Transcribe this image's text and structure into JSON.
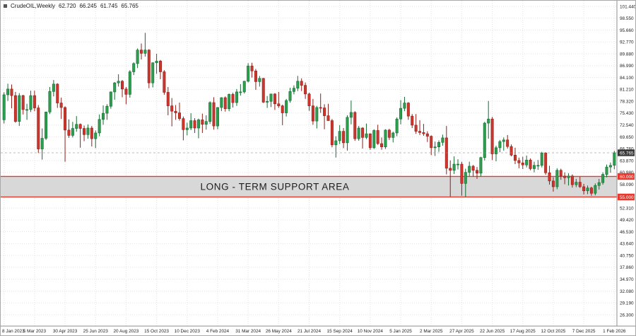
{
  "header": {
    "symbol_label": "CrudeOIL,Weekly",
    "open": "62.720",
    "high": "66.245",
    "low": "61.745",
    "close": "65.765"
  },
  "support_area": {
    "label": "LONG - TERM SUPPORT AREA",
    "top_tag": "60.000",
    "bottom_tag": "55.000"
  },
  "colors": {
    "bull": "#2e9e4f",
    "bull_edge": "#146b31",
    "bear": "#cf352c",
    "bear_edge": "#8e1f18",
    "grid": "#e3e3e3",
    "band_fill": "#d8d8d8",
    "band_edge": "#e8392e",
    "price_tag_current_bg": "#383838",
    "price_tag_zone_bg": "#e8392e",
    "axis_text": "#222222"
  },
  "chart_data": {
    "type": "candlestick",
    "title": "CrudeOIL Weekly",
    "current_price": 65.765,
    "support_zone": [
      55.0,
      60.0
    ],
    "ylim": [
      26.3,
      101.44
    ],
    "y_ticks": [
      101.44,
      98.55,
      95.66,
      92.77,
      89.88,
      86.99,
      84.1,
      81.21,
      78.32,
      75.43,
      72.54,
      69.65,
      66.76,
      63.87,
      60.98,
      58.09,
      55.2,
      52.31,
      49.42,
      46.53,
      43.64,
      40.75,
      37.86,
      34.97,
      32.08,
      29.19,
      26.3
    ],
    "x_tick_step_candles": 8,
    "x_tick_labels": [
      "8 Jan 2023",
      "5 Mar 2023",
      "30 Apr 2023",
      "25 Jun 2023",
      "20 Aug 2023",
      "15 Oct 2023",
      "10 Dec 2023",
      "4 Feb 2024",
      "31 Mar 2024",
      "26 May 2024",
      "21 Jul 2024",
      "15 Sep 2024",
      "10 Nov 2024",
      "5 Jan 2025",
      "2 Mar 2025",
      "27 Apr 2025",
      "22 Jun 2025",
      "17 Aug 2025",
      "12 Oct 2025",
      "7 Dec 2025",
      "1 Feb 2026"
    ],
    "candles": [
      [
        73.8,
        80.5,
        72.9,
        79.9
      ],
      [
        79.9,
        82.6,
        78.4,
        81.3
      ],
      [
        81.3,
        82.4,
        76.6,
        79.7
      ],
      [
        79.7,
        80.6,
        73.1,
        73.4
      ],
      [
        73.4,
        80.3,
        72.3,
        79.7
      ],
      [
        79.7,
        79.9,
        75.1,
        76.3
      ],
      [
        76.3,
        77.7,
        73.8,
        76.3
      ],
      [
        76.3,
        80.9,
        75.7,
        79.7
      ],
      [
        79.7,
        80.9,
        75.9,
        76.7
      ],
      [
        76.7,
        77.4,
        65.7,
        66.7
      ],
      [
        66.7,
        71.7,
        64.1,
        69.3
      ],
      [
        69.3,
        75.8,
        68.9,
        75.7
      ],
      [
        75.7,
        81.8,
        75.2,
        80.7
      ],
      [
        80.7,
        83.5,
        79.5,
        82.5
      ],
      [
        82.5,
        82.7,
        76.7,
        77.9
      ],
      [
        77.9,
        79.2,
        74.0,
        76.8
      ],
      [
        76.8,
        77.1,
        63.6,
        71.3
      ],
      [
        71.3,
        73.9,
        69.4,
        70.0
      ],
      [
        70.0,
        73.3,
        69.5,
        71.7
      ],
      [
        71.7,
        74.7,
        70.9,
        72.7
      ],
      [
        72.7,
        72.9,
        67.0,
        71.7
      ],
      [
        71.7,
        72.4,
        68.6,
        70.2
      ],
      [
        70.2,
        72.7,
        69.2,
        71.8
      ],
      [
        71.8,
        72.3,
        67.3,
        69.2
      ],
      [
        69.2,
        71.2,
        66.9,
        70.6
      ],
      [
        70.6,
        75.1,
        69.8,
        73.9
      ],
      [
        73.9,
        77.3,
        72.6,
        75.4
      ],
      [
        75.4,
        77.6,
        73.8,
        77.1
      ],
      [
        77.1,
        80.7,
        76.5,
        80.6
      ],
      [
        80.6,
        83.0,
        78.7,
        82.8
      ],
      [
        82.8,
        84.9,
        81.9,
        83.2
      ],
      [
        83.2,
        83.5,
        79.3,
        81.3
      ],
      [
        81.3,
        81.8,
        77.6,
        80.0
      ],
      [
        80.0,
        85.9,
        79.2,
        85.5
      ],
      [
        85.5,
        87.8,
        84.7,
        87.5
      ],
      [
        87.5,
        91.2,
        86.4,
        90.8
      ],
      [
        90.8,
        92.4,
        88.5,
        90.0
      ],
      [
        90.0,
        95.0,
        89.2,
        90.8
      ],
      [
        90.8,
        91.0,
        81.5,
        82.8
      ],
      [
        82.8,
        87.8,
        81.7,
        87.7
      ],
      [
        87.7,
        89.9,
        85.0,
        88.1
      ],
      [
        88.1,
        88.4,
        83.7,
        85.5
      ],
      [
        85.5,
        85.9,
        79.9,
        80.5
      ],
      [
        80.5,
        81.8,
        74.9,
        77.2
      ],
      [
        77.2,
        79.1,
        72.2,
        75.9
      ],
      [
        75.9,
        77.4,
        73.8,
        75.5
      ],
      [
        75.5,
        78.0,
        73.6,
        74.1
      ],
      [
        74.1,
        74.6,
        68.8,
        71.4
      ],
      [
        71.4,
        73.1,
        70.0,
        71.8
      ],
      [
        71.8,
        75.4,
        71.3,
        73.6
      ],
      [
        73.6,
        74.2,
        70.6,
        71.8
      ],
      [
        71.8,
        74.1,
        69.3,
        73.8
      ],
      [
        73.8,
        75.3,
        70.6,
        72.7
      ],
      [
        72.7,
        74.9,
        71.4,
        73.4
      ],
      [
        73.4,
        78.3,
        72.8,
        78.0
      ],
      [
        78.0,
        79.3,
        71.4,
        72.3
      ],
      [
        72.3,
        76.9,
        71.5,
        76.8
      ],
      [
        76.8,
        79.3,
        75.9,
        79.2
      ],
      [
        79.2,
        79.5,
        75.8,
        76.5
      ],
      [
        76.5,
        80.2,
        75.9,
        80.0
      ],
      [
        80.0,
        80.4,
        76.8,
        78.0
      ],
      [
        78.0,
        81.3,
        77.2,
        80.6
      ],
      [
        80.6,
        82.5,
        79.7,
        80.6
      ],
      [
        80.6,
        83.3,
        80.2,
        83.2
      ],
      [
        83.2,
        87.6,
        82.9,
        86.9
      ],
      [
        86.9,
        87.7,
        84.1,
        85.7
      ],
      [
        85.7,
        86.2,
        81.1,
        83.1
      ],
      [
        83.1,
        84.5,
        81.9,
        83.9
      ],
      [
        83.9,
        84.0,
        77.9,
        78.1
      ],
      [
        78.1,
        79.6,
        76.7,
        78.3
      ],
      [
        78.3,
        80.1,
        76.9,
        80.1
      ],
      [
        80.1,
        80.3,
        76.2,
        77.7
      ],
      [
        77.7,
        80.6,
        76.7,
        77.2
      ],
      [
        77.2,
        77.5,
        72.5,
        75.5
      ],
      [
        75.5,
        78.9,
        74.6,
        78.5
      ],
      [
        78.5,
        81.6,
        78.0,
        80.7
      ],
      [
        80.7,
        82.2,
        80.0,
        81.5
      ],
      [
        81.5,
        84.5,
        80.8,
        83.2
      ],
      [
        83.2,
        83.9,
        80.8,
        82.2
      ],
      [
        82.2,
        82.9,
        78.9,
        80.1
      ],
      [
        80.1,
        80.4,
        76.0,
        77.2
      ],
      [
        77.2,
        78.9,
        72.6,
        73.5
      ],
      [
        73.5,
        77.2,
        71.7,
        76.8
      ],
      [
        76.8,
        80.2,
        75.5,
        76.7
      ],
      [
        76.7,
        77.6,
        71.5,
        74.8
      ],
      [
        74.8,
        77.7,
        73.9,
        73.6
      ],
      [
        73.6,
        74.0,
        67.1,
        67.7
      ],
      [
        67.7,
        69.8,
        64.6,
        68.7
      ],
      [
        68.7,
        72.5,
        67.9,
        71.0
      ],
      [
        71.0,
        71.8,
        66.9,
        68.2
      ],
      [
        68.2,
        74.9,
        66.3,
        74.4
      ],
      [
        74.4,
        78.5,
        72.7,
        75.6
      ],
      [
        75.6,
        75.9,
        68.7,
        69.2
      ],
      [
        69.2,
        72.3,
        68.7,
        71.8
      ],
      [
        71.8,
        72.0,
        66.8,
        69.5
      ],
      [
        69.5,
        72.9,
        69.1,
        70.4
      ],
      [
        70.4,
        70.5,
        66.5,
        67.0
      ],
      [
        67.0,
        71.5,
        66.7,
        71.2
      ],
      [
        71.2,
        72.6,
        67.7,
        68.0
      ],
      [
        68.0,
        69.5,
        66.5,
        67.2
      ],
      [
        67.2,
        71.5,
        66.7,
        71.3
      ],
      [
        71.3,
        71.6,
        68.9,
        69.5
      ],
      [
        69.5,
        70.9,
        68.3,
        70.6
      ],
      [
        70.6,
        74.4,
        69.8,
        74.0
      ],
      [
        74.0,
        78.6,
        72.7,
        76.6
      ],
      [
        76.6,
        79.4,
        75.9,
        77.9
      ],
      [
        77.9,
        78.1,
        73.8,
        74.7
      ],
      [
        74.7,
        75.2,
        71.8,
        72.5
      ],
      [
        72.5,
        75.2,
        70.4,
        71.0
      ],
      [
        71.0,
        73.7,
        70.1,
        70.7
      ],
      [
        70.7,
        72.8,
        69.9,
        70.4
      ],
      [
        70.4,
        71.0,
        68.4,
        69.8
      ],
      [
        69.8,
        70.0,
        65.2,
        67.0
      ],
      [
        67.0,
        68.5,
        65.0,
        67.2
      ],
      [
        67.2,
        68.8,
        66.0,
        68.3
      ],
      [
        68.3,
        70.2,
        67.5,
        69.4
      ],
      [
        69.4,
        72.3,
        60.5,
        62.0
      ],
      [
        62.0,
        63.9,
        55.1,
        61.5
      ],
      [
        61.5,
        64.9,
        60.6,
        63.0
      ],
      [
        63.0,
        64.2,
        61.7,
        63.0
      ],
      [
        63.0,
        63.6,
        55.3,
        58.3
      ],
      [
        58.3,
        61.9,
        55.0,
        61.0
      ],
      [
        61.0,
        63.6,
        60.1,
        62.5
      ],
      [
        62.5,
        62.8,
        60.0,
        61.5
      ],
      [
        61.5,
        62.3,
        59.4,
        60.8
      ],
      [
        60.8,
        64.8,
        60.0,
        64.6
      ],
      [
        64.6,
        73.3,
        63.9,
        73.0
      ],
      [
        73.0,
        78.4,
        69.2,
        74.0
      ],
      [
        74.0,
        74.5,
        64.0,
        65.5
      ],
      [
        65.5,
        67.5,
        63.7,
        67.0
      ],
      [
        67.0,
        68.9,
        65.9,
        68.5
      ],
      [
        68.5,
        69.5,
        66.3,
        68.9
      ],
      [
        68.9,
        70.1,
        66.8,
        67.3
      ],
      [
        67.3,
        67.8,
        64.9,
        65.2
      ],
      [
        65.2,
        67.0,
        63.0,
        63.9
      ],
      [
        63.9,
        64.6,
        62.0,
        63.3
      ],
      [
        63.3,
        64.8,
        61.8,
        62.8
      ],
      [
        62.8,
        65.1,
        62.2,
        64.0
      ],
      [
        64.0,
        64.4,
        61.5,
        61.9
      ],
      [
        61.9,
        63.6,
        61.0,
        62.7
      ],
      [
        62.7,
        64.0,
        61.6,
        62.7
      ],
      [
        62.7,
        66.0,
        62.2,
        65.7
      ],
      [
        65.7,
        65.9,
        60.4,
        60.9
      ],
      [
        60.9,
        62.6,
        58.0,
        58.9
      ],
      [
        58.9,
        59.8,
        56.3,
        57.5
      ],
      [
        57.5,
        62.0,
        56.9,
        61.5
      ],
      [
        61.5,
        61.9,
        59.2,
        60.1
      ],
      [
        60.1,
        61.0,
        58.1,
        59.7
      ],
      [
        59.7,
        60.8,
        57.8,
        60.1
      ],
      [
        60.1,
        60.5,
        57.3,
        58.0
      ],
      [
        58.0,
        59.4,
        57.4,
        58.6
      ],
      [
        58.6,
        59.9,
        57.2,
        57.5
      ],
      [
        57.5,
        58.2,
        55.6,
        56.5
      ],
      [
        56.5,
        57.8,
        55.7,
        57.2
      ],
      [
        57.2,
        57.5,
        55.3,
        55.9
      ],
      [
        55.9,
        58.3,
        55.4,
        57.8
      ],
      [
        57.8,
        59.4,
        56.8,
        58.5
      ],
      [
        58.5,
        61.0,
        58.0,
        60.5
      ],
      [
        60.5,
        62.9,
        59.8,
        62.3
      ],
      [
        62.3,
        63.4,
        60.9,
        62.7
      ],
      [
        62.72,
        66.245,
        61.745,
        65.765
      ]
    ]
  }
}
